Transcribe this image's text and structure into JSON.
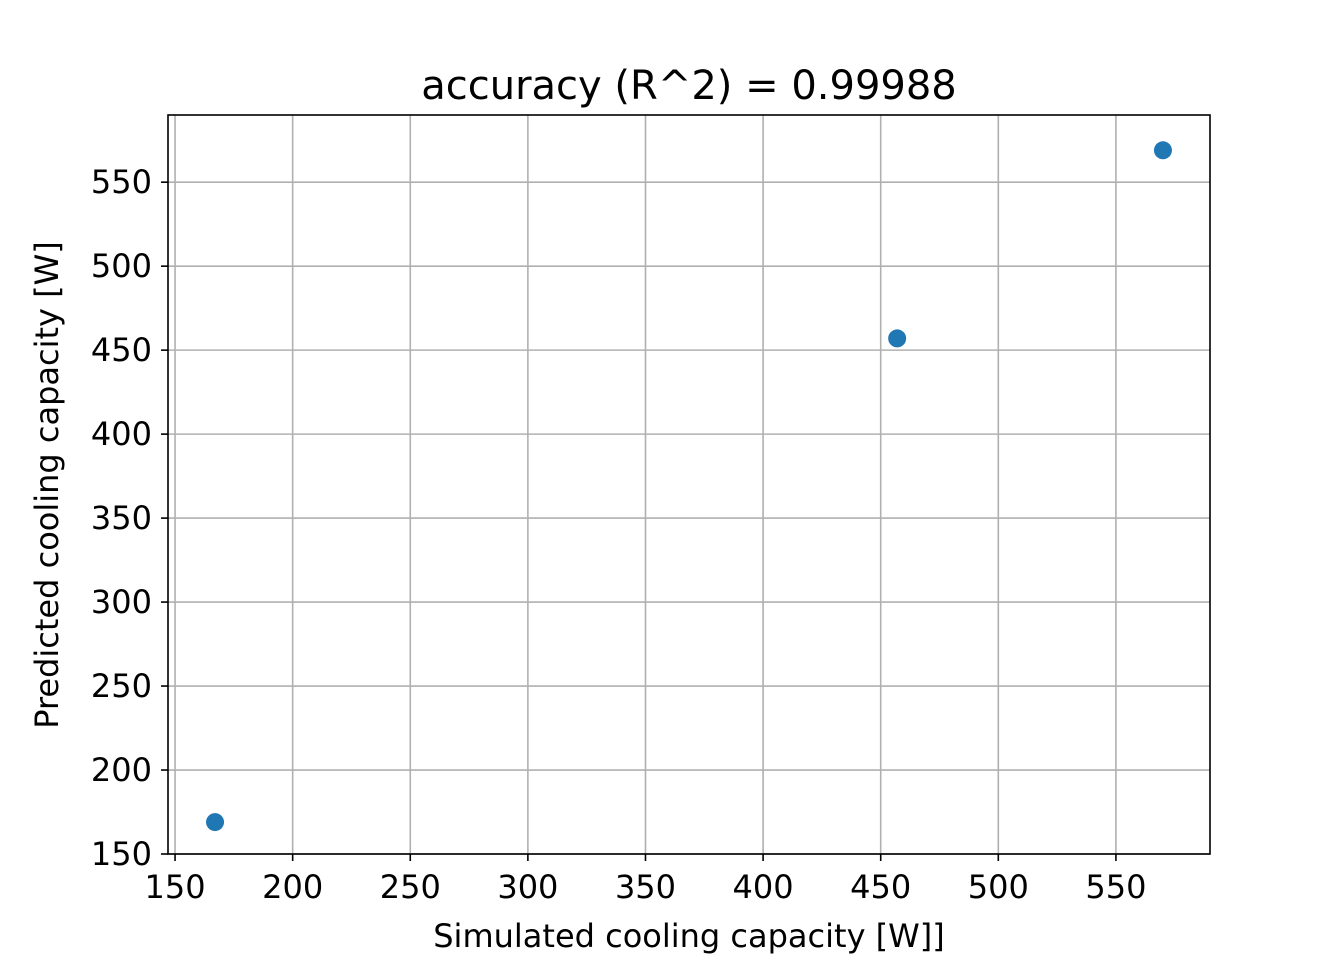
{
  "chart_data": {
    "type": "scatter",
    "title": "accuracy (R^2) =  0.99988",
    "xlabel": "Simulated cooling capacity [W]]",
    "ylabel": "Predicted cooling capacity [W]",
    "xlim": [
      147,
      590
    ],
    "ylim": [
      150,
      590
    ],
    "xticks": [
      150,
      200,
      250,
      300,
      350,
      400,
      450,
      500,
      550
    ],
    "yticks": [
      150,
      200,
      250,
      300,
      350,
      400,
      450,
      500,
      550
    ],
    "grid": true,
    "points": [
      {
        "x": 167,
        "y": 169
      },
      {
        "x": 457,
        "y": 457
      },
      {
        "x": 570,
        "y": 569
      }
    ],
    "colors": {
      "marker": "#1f77b4",
      "grid": "#b0b0b0",
      "axes": "#000000"
    }
  }
}
